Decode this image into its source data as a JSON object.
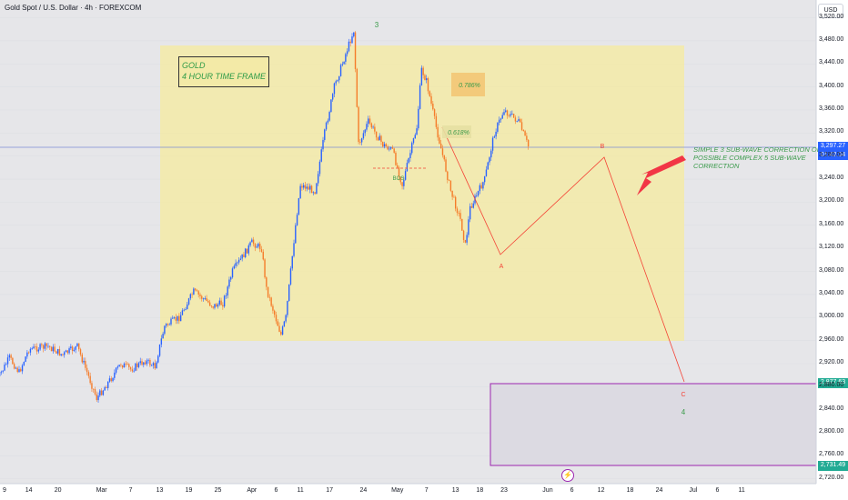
{
  "header": {
    "symbol": "Gold Spot / U.S. Dollar · 4h · FOREXCOM",
    "currency": "USD"
  },
  "chart_data": {
    "type": "candlestick",
    "title": "Gold Spot / U.S. Dollar · 4h · FOREXCOM",
    "y_axis_ticks": [
      "3,520.00",
      "3,480.00",
      "3,440.00",
      "3,400.00",
      "3,360.00",
      "3,320.00",
      "3,280.00",
      "3,240.00",
      "3,200.00",
      "3,160.00",
      "3,120.00",
      "3,080.00",
      "3,040.00",
      "3,000.00",
      "2,960.00",
      "2,920.00",
      "2,880.00",
      "2,840.00",
      "2,800.00",
      "2,760.00",
      "2,720.00"
    ],
    "ylim": [
      2715,
      3535
    ],
    "x_axis_ticks": [
      "9",
      "14",
      "20",
      "Mar",
      "7",
      "13",
      "19",
      "25",
      "Apr",
      "6",
      "11",
      "17",
      "24",
      "May",
      "7",
      "13",
      "18",
      "23",
      "Jun",
      "6",
      "12",
      "18",
      "24",
      "Jul",
      "6",
      "11"
    ],
    "current_price": {
      "label": "3,297.27",
      "countdown": "01:42:34",
      "value": 3297.27
    },
    "zone_top_price": {
      "label": "2,877.63",
      "value": 2877.63
    },
    "zone_bottom_price": {
      "label": "2,731.49",
      "value": 2731.49
    },
    "price_path": [
      {
        "date": "Feb 7",
        "price": 2885
      },
      {
        "date": "Feb 10",
        "price": 2930
      },
      {
        "date": "Feb 12",
        "price": 2905
      },
      {
        "date": "Feb 14",
        "price": 2945
      },
      {
        "date": "Feb 18",
        "price": 2950
      },
      {
        "date": "Feb 21",
        "price": 2935
      },
      {
        "date": "Feb 24",
        "price": 2950
      },
      {
        "date": "Feb 26",
        "price": 2905
      },
      {
        "date": "Feb 28",
        "price": 2860
      },
      {
        "date": "Mar 3",
        "price": 2895
      },
      {
        "date": "Mar 5",
        "price": 2920
      },
      {
        "date": "Mar 7",
        "price": 2910
      },
      {
        "date": "Mar 10",
        "price": 2925
      },
      {
        "date": "Mar 12",
        "price": 2915
      },
      {
        "date": "Mar 14",
        "price": 2985
      },
      {
        "date": "Mar 17",
        "price": 3000
      },
      {
        "date": "Mar 20",
        "price": 3045
      },
      {
        "date": "Mar 24",
        "price": 3020
      },
      {
        "date": "Mar 26",
        "price": 3025
      },
      {
        "date": "Mar 28",
        "price": 3080
      },
      {
        "date": "Apr 1",
        "price": 3130
      },
      {
        "date": "Apr 3",
        "price": 3120
      },
      {
        "date": "Apr 4",
        "price": 3050
      },
      {
        "date": "Apr 7",
        "price": 2970
      },
      {
        "date": "Apr 8",
        "price": 3000
      },
      {
        "date": "Apr 10",
        "price": 3160
      },
      {
        "date": "Apr 11",
        "price": 3230
      },
      {
        "date": "Apr 14",
        "price": 3220
      },
      {
        "date": "Apr 16",
        "price": 3320
      },
      {
        "date": "Apr 18",
        "price": 3400
      },
      {
        "date": "Apr 22",
        "price": 3498
      },
      {
        "date": "Apr 23",
        "price": 3300
      },
      {
        "date": "Apr 25",
        "price": 3340
      },
      {
        "date": "Apr 28",
        "price": 3300
      },
      {
        "date": "Apr 30",
        "price": 3290
      },
      {
        "date": "May 2",
        "price": 3230
      },
      {
        "date": "May 5",
        "price": 3330
      },
      {
        "date": "May 6",
        "price": 3430
      },
      {
        "date": "May 7",
        "price": 3410
      },
      {
        "date": "May 9",
        "price": 3330
      },
      {
        "date": "May 12",
        "price": 3220
      },
      {
        "date": "May 14",
        "price": 3170
      },
      {
        "date": "May 15",
        "price": 3125
      },
      {
        "date": "May 16",
        "price": 3190
      },
      {
        "date": "May 19",
        "price": 3240
      },
      {
        "date": "May 21",
        "price": 3320
      },
      {
        "date": "May 23",
        "price": 3360
      },
      {
        "date": "May 26",
        "price": 3340
      },
      {
        "date": "May 28",
        "price": 3297
      }
    ],
    "annotations": {
      "box_title_1": "GOLD",
      "box_title_2": "4 HOUR TIME FRAME",
      "wave_3": "3",
      "wave_a": "A",
      "wave_b": "B",
      "wave_c": "C",
      "wave_4": "4",
      "bos": "BOS",
      "fib_0786": "0.786%",
      "fib_0618": "0.618%",
      "note": "SIMPLE 3 SUB-WAVE CORRECTION OR A POSSIBLE COMPLEX 5 SUB-WAVE CORRECTION"
    },
    "colors": {
      "up": "#2962ff",
      "down": "#f57c2a",
      "highlight_zone": "#f3eaa7",
      "target_zone": "#9c27b0",
      "projection": "#f44336",
      "text_green": "#3a9a4a"
    }
  },
  "footer": {
    "lightning_icon": "lightning-icon"
  }
}
